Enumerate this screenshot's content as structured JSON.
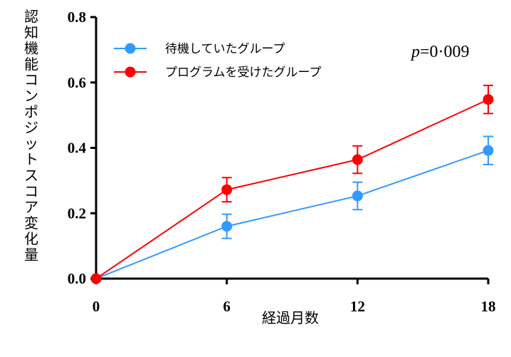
{
  "chart_data": {
    "type": "line",
    "x": [
      0,
      6,
      12,
      18
    ],
    "xlabel": "経過月数",
    "ylabel": "認知機能コンポジットスコア変化量",
    "xticks": [
      "0",
      "6",
      "12",
      "18"
    ],
    "yticks": [
      "0.0",
      "0.2",
      "0.4",
      "0.6",
      "0.8"
    ],
    "xlim": [
      0,
      18
    ],
    "ylim": [
      0,
      0.8
    ],
    "grid": false,
    "legend_position": "top-left",
    "annotation": {
      "p_italic": "p",
      "p_rest": "=0·009"
    },
    "series": [
      {
        "name": "待機していたグループ",
        "color": "#3399ff",
        "values": [
          0.0,
          0.16,
          0.253,
          0.392
        ],
        "error": [
          0.0,
          0.037,
          0.042,
          0.043
        ]
      },
      {
        "name": "プログラムを受けたグループ",
        "color": "#ff0000",
        "values": [
          0.0,
          0.272,
          0.364,
          0.548
        ],
        "error": [
          0.0,
          0.037,
          0.042,
          0.043
        ]
      }
    ]
  }
}
